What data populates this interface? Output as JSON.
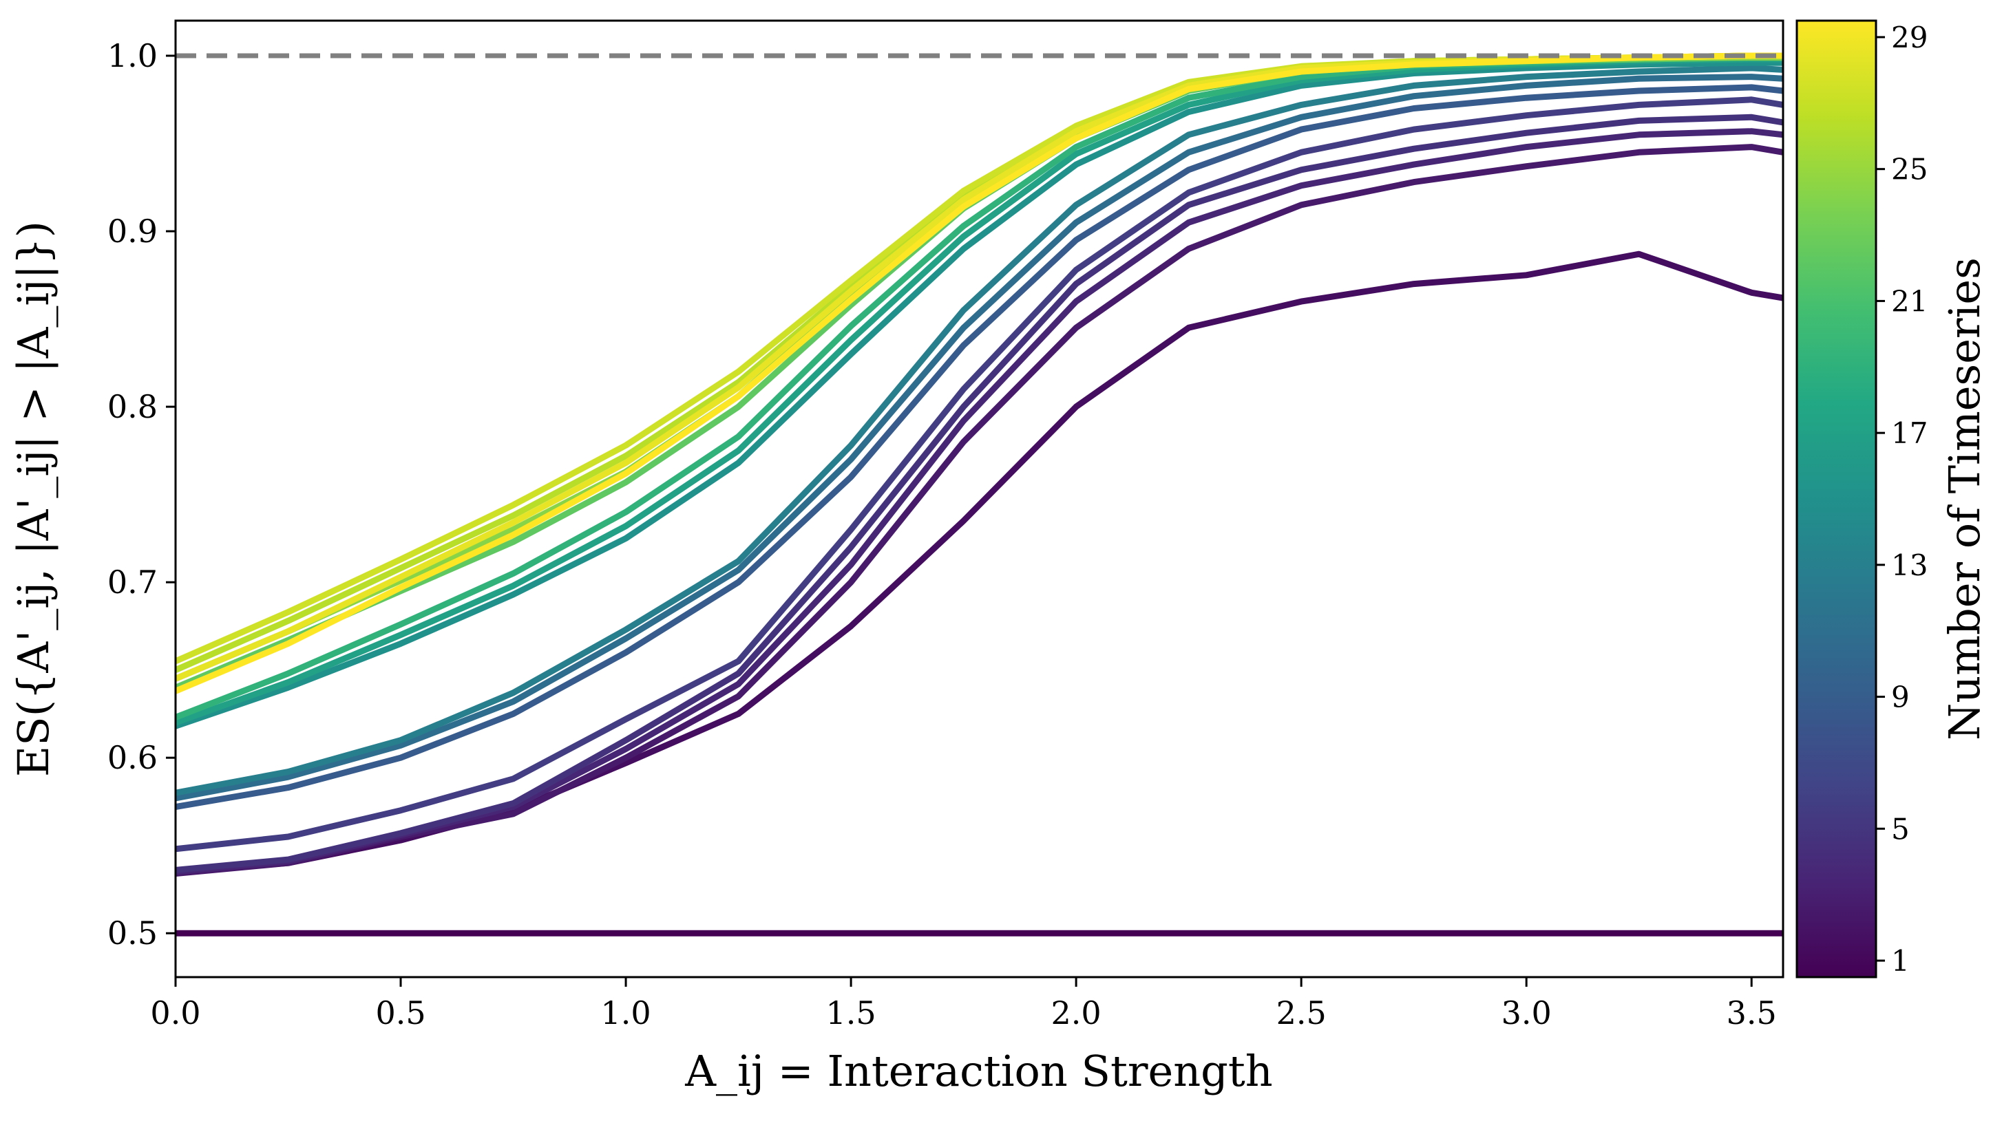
{
  "chart_data": {
    "type": "line",
    "title": "",
    "xlabel": "A_ij = Interaction Strength",
    "ylabel": "ES({A'_ij, |A'_ij| > |A_ij|})",
    "xlim": [
      0.0,
      3.57
    ],
    "ylim": [
      0.475,
      1.02
    ],
    "x_ticks": [
      "0.0",
      "0.5",
      "1.0",
      "1.5",
      "2.0",
      "2.5",
      "3.0",
      "3.5"
    ],
    "y_ticks": [
      "0.5",
      "0.6",
      "0.7",
      "0.8",
      "0.9",
      "1.0"
    ],
    "grid": false,
    "reference_line": {
      "y": 1.0,
      "style": "dashed",
      "color": "#808080"
    },
    "colorbar": {
      "label": "Number of Timeseries",
      "min": 1,
      "max": 29,
      "ticks": [
        "1",
        "5",
        "9",
        "13",
        "17",
        "21",
        "25",
        "29"
      ],
      "colormap": "viridis"
    },
    "x": [
      0.0,
      0.25,
      0.5,
      0.75,
      1.0,
      1.25,
      1.5,
      1.75,
      2.0,
      2.25,
      2.5,
      2.75,
      3.0,
      3.25,
      3.5,
      3.57
    ],
    "series": [
      {
        "n": 1,
        "values": [
          0.5,
          0.5,
          0.5,
          0.5,
          0.5,
          0.5,
          0.5,
          0.5,
          0.5,
          0.5,
          0.5,
          0.5,
          0.5,
          0.5,
          0.5,
          0.5
        ]
      },
      {
        "n": 2,
        "values": [
          0.535,
          0.54,
          0.553,
          0.57,
          0.597,
          0.625,
          0.675,
          0.735,
          0.8,
          0.845,
          0.86,
          0.87,
          0.875,
          0.887,
          0.865,
          0.862
        ]
      },
      {
        "n": 3,
        "values": [
          0.534,
          0.54,
          0.555,
          0.568,
          0.6,
          0.635,
          0.7,
          0.78,
          0.845,
          0.89,
          0.915,
          0.928,
          0.937,
          0.945,
          0.948,
          0.945
        ]
      },
      {
        "n": 4,
        "values": [
          0.535,
          0.541,
          0.556,
          0.572,
          0.605,
          0.642,
          0.71,
          0.792,
          0.86,
          0.905,
          0.926,
          0.938,
          0.948,
          0.955,
          0.957,
          0.955
        ]
      },
      {
        "n": 5,
        "values": [
          0.536,
          0.542,
          0.557,
          0.574,
          0.61,
          0.648,
          0.72,
          0.8,
          0.87,
          0.915,
          0.935,
          0.947,
          0.956,
          0.963,
          0.965,
          0.962
        ]
      },
      {
        "n": 6,
        "values": [
          0.548,
          0.555,
          0.57,
          0.588,
          0.622,
          0.655,
          0.73,
          0.81,
          0.878,
          0.922,
          0.945,
          0.958,
          0.966,
          0.972,
          0.975,
          0.972
        ]
      },
      {
        "n": 9,
        "values": [
          0.572,
          0.583,
          0.6,
          0.625,
          0.66,
          0.7,
          0.76,
          0.835,
          0.895,
          0.935,
          0.958,
          0.97,
          0.976,
          0.98,
          0.982,
          0.98
        ]
      },
      {
        "n": 11,
        "values": [
          0.577,
          0.589,
          0.607,
          0.632,
          0.668,
          0.707,
          0.77,
          0.845,
          0.905,
          0.945,
          0.965,
          0.977,
          0.983,
          0.987,
          0.988,
          0.987
        ]
      },
      {
        "n": 13,
        "values": [
          0.58,
          0.592,
          0.61,
          0.637,
          0.673,
          0.712,
          0.778,
          0.855,
          0.915,
          0.955,
          0.972,
          0.983,
          0.988,
          0.991,
          0.993,
          0.992
        ]
      },
      {
        "n": 15,
        "values": [
          0.618,
          0.64,
          0.665,
          0.693,
          0.725,
          0.768,
          0.83,
          0.89,
          0.938,
          0.968,
          0.983,
          0.99,
          0.993,
          0.995,
          0.996,
          0.996
        ]
      },
      {
        "n": 17,
        "values": [
          0.62,
          0.643,
          0.67,
          0.698,
          0.732,
          0.775,
          0.838,
          0.897,
          0.944,
          0.972,
          0.986,
          0.992,
          0.995,
          0.997,
          0.998,
          0.998
        ]
      },
      {
        "n": 19,
        "values": [
          0.623,
          0.648,
          0.676,
          0.705,
          0.74,
          0.783,
          0.846,
          0.903,
          0.948,
          0.976,
          0.988,
          0.994,
          0.996,
          0.998,
          0.999,
          0.999
        ]
      },
      {
        "n": 22,
        "values": [
          0.64,
          0.667,
          0.695,
          0.723,
          0.757,
          0.8,
          0.858,
          0.913,
          0.953,
          0.98,
          0.991,
          0.995,
          0.997,
          0.998,
          0.999,
          0.999
        ]
      },
      {
        "n": 24,
        "values": [
          0.645,
          0.672,
          0.701,
          0.73,
          0.763,
          0.806,
          0.863,
          0.917,
          0.956,
          0.982,
          0.992,
          0.996,
          0.998,
          0.999,
          0.999,
          0.999
        ]
      },
      {
        "n": 26,
        "values": [
          0.65,
          0.678,
          0.708,
          0.738,
          0.772,
          0.814,
          0.868,
          0.92,
          0.958,
          0.984,
          0.993,
          0.997,
          0.998,
          0.999,
          1.0,
          1.0
        ]
      },
      {
        "n": 27,
        "values": [
          0.655,
          0.683,
          0.713,
          0.744,
          0.778,
          0.82,
          0.872,
          0.923,
          0.96,
          0.985,
          0.994,
          0.997,
          0.998,
          0.999,
          1.0,
          1.0
        ]
      },
      {
        "n": 28,
        "values": [
          0.645,
          0.672,
          0.703,
          0.734,
          0.768,
          0.811,
          0.866,
          0.918,
          0.957,
          0.983,
          0.993,
          0.996,
          0.998,
          0.999,
          1.0,
          1.0
        ]
      },
      {
        "n": 29,
        "values": [
          0.638,
          0.665,
          0.697,
          0.727,
          0.762,
          0.806,
          0.861,
          0.914,
          0.953,
          0.981,
          0.991,
          0.995,
          0.997,
          0.999,
          1.0,
          1.0
        ]
      }
    ]
  }
}
